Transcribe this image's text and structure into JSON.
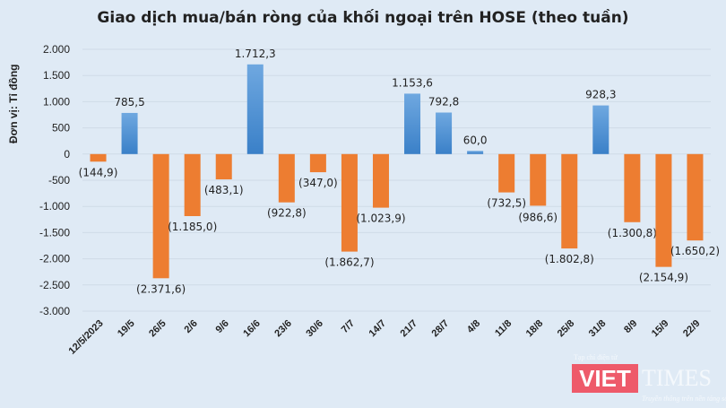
{
  "chart_data": {
    "type": "bar",
    "title": "Giao dịch mua/bán ròng của khối ngoại trên HOSE (theo tuần)",
    "xlabel": "",
    "ylabel": "Đơn vị: Tỉ đồng",
    "ylim": [
      -3000,
      2000
    ],
    "yticks": [
      2000,
      1500,
      1000,
      500,
      0,
      -500,
      -1000,
      -1500,
      -2000,
      -2500,
      -3000
    ],
    "ytick_labels": [
      "2.000",
      "1.500",
      "1.000",
      "500",
      "0",
      "-500",
      "-1.000",
      "-1.500",
      "-2.000",
      "-2.500",
      "-3.000"
    ],
    "grid": true,
    "categories": [
      "12/5/2023",
      "19/5",
      "26/5",
      "2/6",
      "9/6",
      "16/6",
      "23/6",
      "30/6",
      "7/7",
      "14/7",
      "21/7",
      "28/7",
      "4/8",
      "11/8",
      "18/8",
      "25/8",
      "31/8",
      "8/9",
      "15/9",
      "22/9"
    ],
    "values": [
      -144.9,
      785.5,
      -2371.6,
      -1185.0,
      -483.1,
      1712.3,
      -922.8,
      -347.0,
      -1862.7,
      -1023.9,
      1153.6,
      792.8,
      60.0,
      -732.5,
      -986.6,
      -1802.8,
      928.3,
      -1300.8,
      -2154.9,
      -1650.2
    ],
    "data_labels": [
      "(144,9)",
      "785,5",
      "(2.371,6)",
      "(1.185,0)",
      "(483,1)",
      "1.712,3",
      "(922,8)",
      "(347,0)",
      "(1.862,7)",
      "(1.023,9)",
      "1.153,6",
      "792,8",
      "60,0",
      "(732,5)",
      "(986,6)",
      "(1.802,8)",
      "928,3",
      "(1.300,8)",
      "(2.154,9)",
      "(1.650,2)"
    ],
    "colors": {
      "positive": "#4a90d6",
      "negative": "#ed7d31"
    }
  },
  "watermark": {
    "brand": "VIETTIMES",
    "box_text": "VIET",
    "rest_text": "TIMES",
    "tagline_top": "Tạp chí điện tử",
    "tagline_bottom": "Truyền thông trên nền tảng số"
  }
}
